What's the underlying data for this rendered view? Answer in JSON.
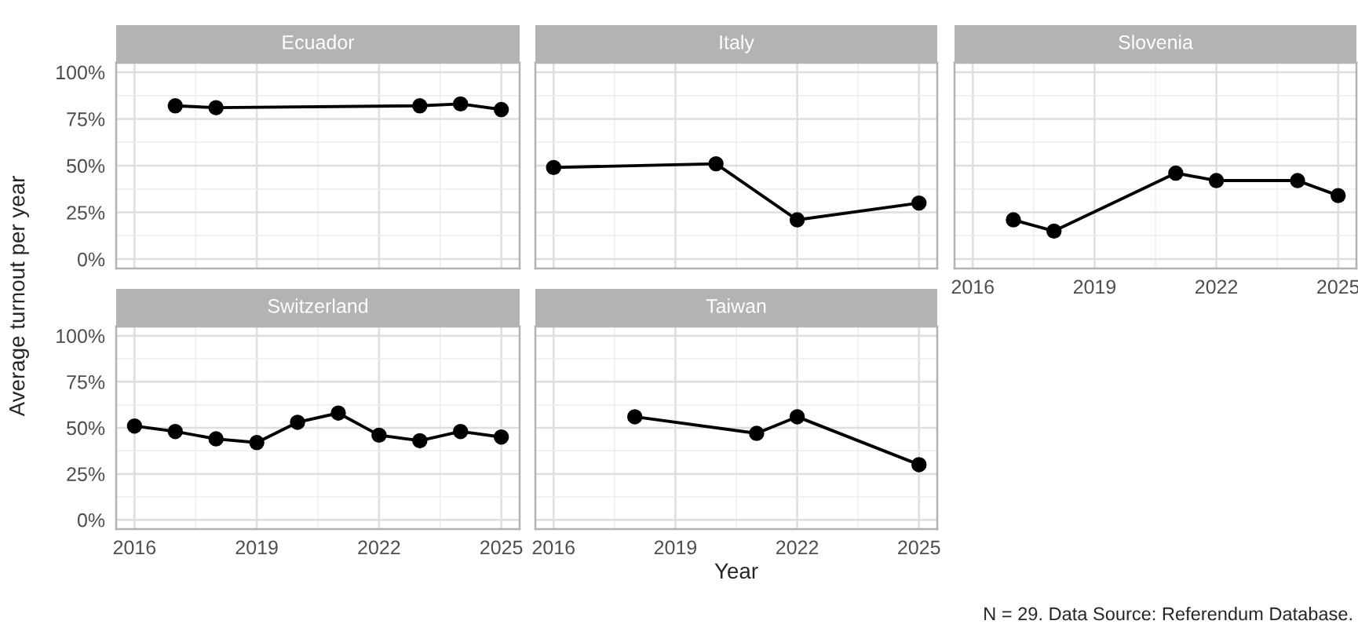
{
  "chart_data": [
    {
      "type": "line",
      "title": "Ecuador",
      "ylabel": "Average turnout per year",
      "annotations": [
        "N = 29. Data Source: Referendum Database."
      ],
      "x": [
        2017,
        2018,
        2023,
        2024,
        2025
      ],
      "values": [
        82,
        81,
        82,
        83,
        80
      ],
      "color": "#000000",
      "marker": "circle",
      "line_style": "solid",
      "grid": true,
      "xlim": [
        2015.55,
        2025.45
      ],
      "xticks": [
        2016,
        2019,
        2022,
        2025
      ],
      "ylim": [
        -5,
        105
      ],
      "yticks": [
        {
          "value": 0,
          "label": "0%"
        },
        {
          "value": 25,
          "label": "25%"
        },
        {
          "value": 50,
          "label": "50%"
        },
        {
          "value": 75,
          "label": "75%"
        },
        {
          "value": 100,
          "label": "100%"
        }
      ],
      "tick_labels": "y"
    },
    {
      "type": "line",
      "title": "Italy",
      "x": [
        2016,
        2020,
        2022,
        2025
      ],
      "values": [
        49,
        51,
        21,
        30
      ],
      "color": "#000000",
      "marker": "circle",
      "line_style": "solid",
      "grid": true,
      "xlim": [
        2015.55,
        2025.45
      ],
      "xticks": [
        2016,
        2019,
        2022,
        2025
      ],
      "ylim": [
        -5,
        105
      ],
      "yticks": [
        0,
        25,
        50,
        75,
        100
      ],
      "tick_labels": false
    },
    {
      "type": "line",
      "title": "Slovenia",
      "x": [
        2017,
        2018,
        2021,
        2022,
        2024,
        2025
      ],
      "values": [
        21,
        15,
        46,
        42,
        42,
        34
      ],
      "color": "#000000",
      "marker": "circle",
      "line_style": "solid",
      "grid": true,
      "xlim": [
        2015.55,
        2025.45
      ],
      "xticks": [
        2016,
        2019,
        2022,
        2025
      ],
      "ylim": [
        -5,
        105
      ],
      "yticks": [
        0,
        25,
        50,
        75,
        100
      ],
      "tick_labels": "x"
    },
    {
      "type": "line",
      "title": "Switzerland",
      "x": [
        2016,
        2017,
        2018,
        2019,
        2020,
        2021,
        2022,
        2023,
        2024,
        2025
      ],
      "values": [
        51,
        48,
        44,
        42,
        53,
        58,
        46,
        43,
        48,
        45
      ],
      "color": "#000000",
      "marker": "circle",
      "line_style": "solid",
      "grid": true,
      "xlim": [
        2015.55,
        2025.45
      ],
      "xticks": [
        2016,
        2019,
        2022,
        2025
      ],
      "ylim": [
        -5,
        105
      ],
      "yticks": [
        {
          "value": 0,
          "label": "0%"
        },
        {
          "value": 25,
          "label": "25%"
        },
        {
          "value": 50,
          "label": "50%"
        },
        {
          "value": 75,
          "label": "75%"
        },
        {
          "value": 100,
          "label": "100%"
        }
      ]
    },
    {
      "type": "line",
      "title": "Taiwan",
      "xlabel": "Year",
      "x": [
        2018,
        2021,
        2022,
        2025
      ],
      "values": [
        56,
        47,
        56,
        30
      ],
      "color": "#000000",
      "marker": "circle",
      "line_style": "solid",
      "grid": true,
      "xlim": [
        2015.55,
        2025.45
      ],
      "xticks": [
        2016,
        2019,
        2022,
        2025
      ],
      "ylim": [
        -5,
        105
      ],
      "yticks": [
        0,
        25,
        50,
        75,
        100
      ],
      "tick_labels": "x"
    }
  ]
}
